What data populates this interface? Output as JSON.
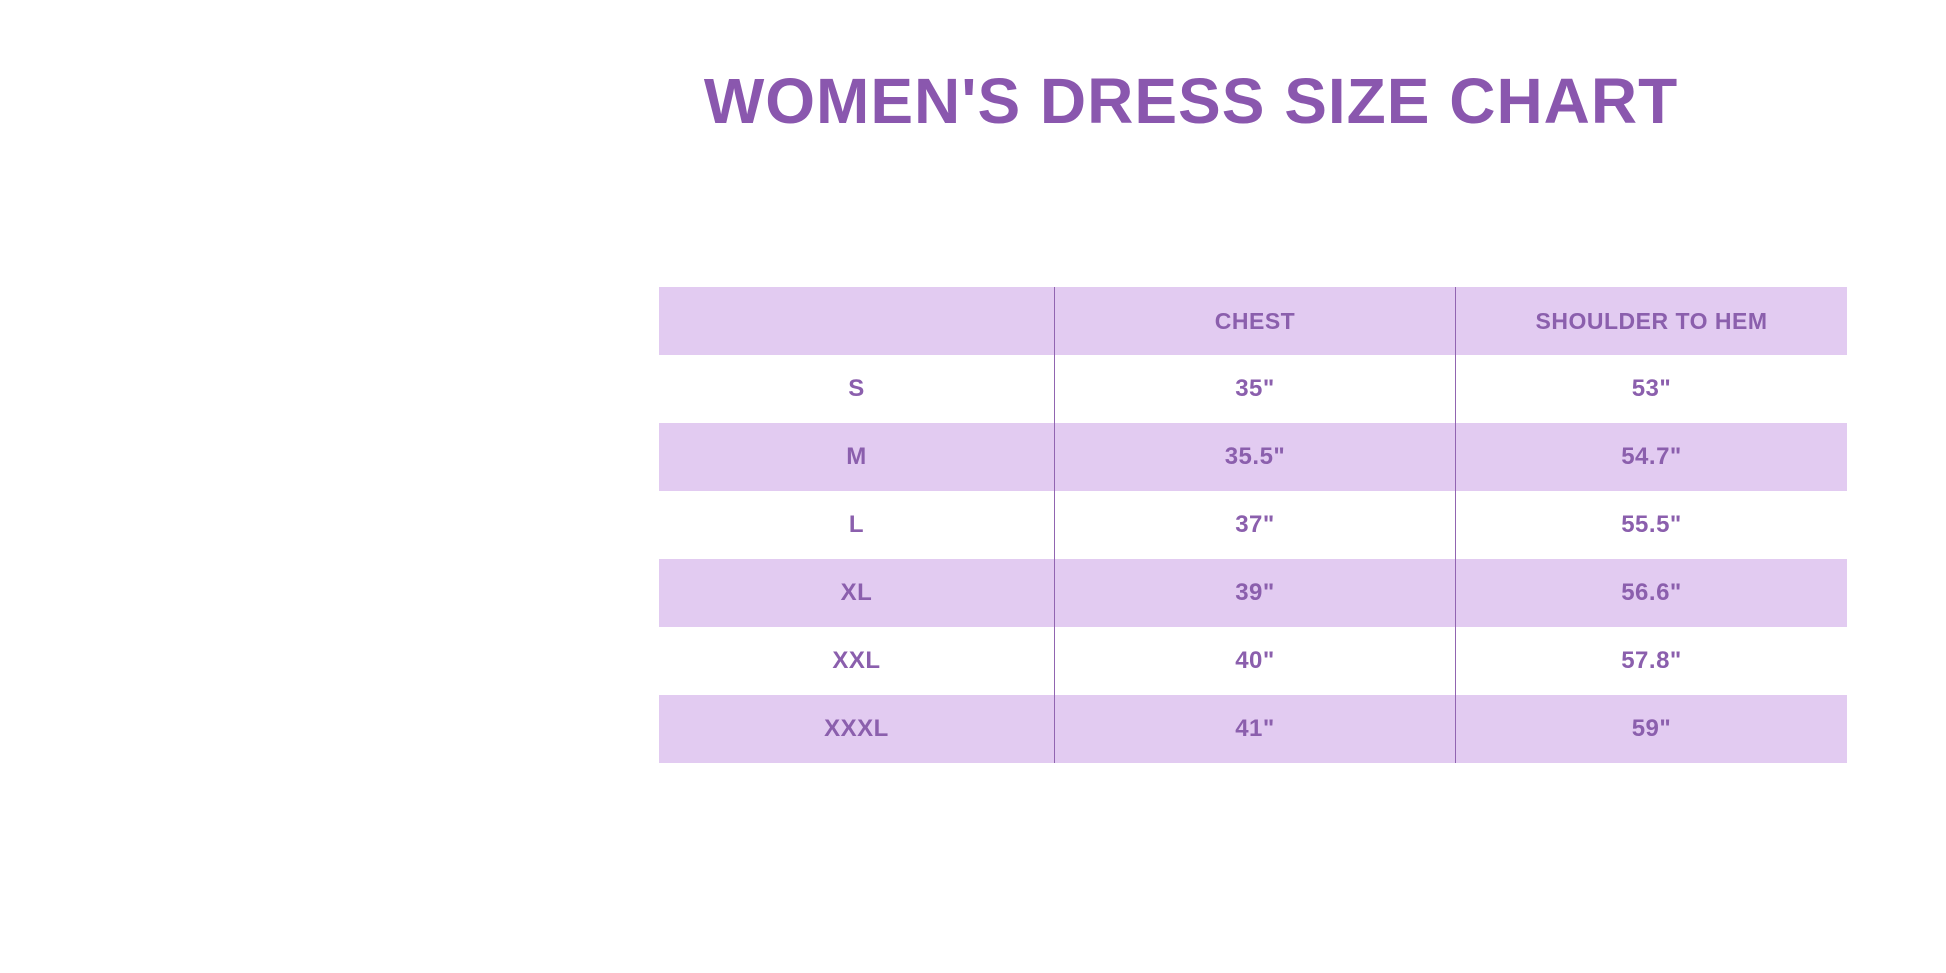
{
  "page": {
    "title": "WOMEN'S DRESS SIZE CHART"
  },
  "colors": {
    "background": "#ffffff",
    "title_purple": "#8a57ae",
    "text_purple": "#8b5fad",
    "lavender_band": "#e2cbf1",
    "divider_purple": "#9165b1"
  },
  "chart_data": {
    "type": "table",
    "title": "WOMEN'S DRESS SIZE CHART",
    "columns": [
      "",
      "CHEST",
      "SHOULDER TO HEM"
    ],
    "units": "inches",
    "rows": [
      {
        "size": "S",
        "chest": "35\"",
        "shoulder_to_hem": "53\""
      },
      {
        "size": "M",
        "chest": "35.5\"",
        "shoulder_to_hem": "54.7\""
      },
      {
        "size": "L",
        "chest": "37\"",
        "shoulder_to_hem": "55.5\""
      },
      {
        "size": "XL",
        "chest": "39\"",
        "shoulder_to_hem": "56.6\""
      },
      {
        "size": "XXL",
        "chest": "40\"",
        "shoulder_to_hem": "57.8\""
      },
      {
        "size": "XXXL",
        "chest": "41\"",
        "shoulder_to_hem": "59\""
      }
    ],
    "layout": {
      "row_shading": "header and even rows lavender, others white",
      "gridlines": "vertical dividers between columns only, no outer border"
    }
  }
}
